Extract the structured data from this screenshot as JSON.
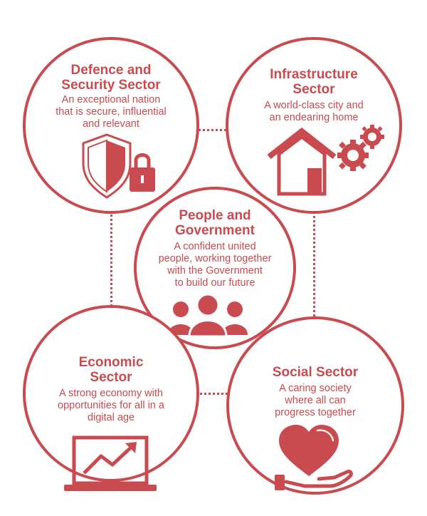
{
  "colors": {
    "accent": "#c94b4f",
    "background": "#ffffff"
  },
  "sectors": {
    "defence": {
      "title": "Defence and\nSecurity Sector",
      "description": "An exceptional nation\nthat is secure, influential\nand relevant",
      "icon": "shield-lock-icon"
    },
    "infrastructure": {
      "title": "Infrastructure\nSector",
      "description": "A world-class city and\nan endearing home",
      "icon": "house-gears-icon"
    },
    "people": {
      "title": "People and\nGovernment",
      "description": "A confident united\npeople, working together\nwith the Government\nto build our future",
      "icon": "people-group-icon"
    },
    "economic": {
      "title": "Economic\nSector",
      "description": "A strong economy with\nopportunities for all in a\ndigital age",
      "icon": "laptop-trend-icon"
    },
    "social": {
      "title": "Social Sector",
      "description": "A caring society\nwhere all can\nprogress together",
      "icon": "heart-hand-icon"
    }
  }
}
